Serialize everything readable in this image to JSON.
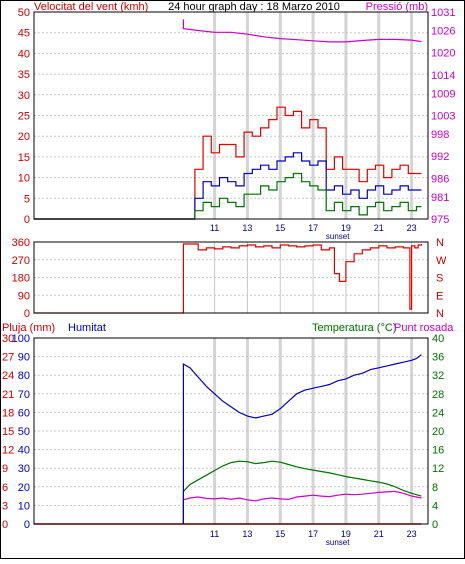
{
  "colors": {
    "wind_speed": "#e00000",
    "wind_gust": "#e00000",
    "wind_avg": "#0000c0",
    "wind_min": "#007000",
    "pressure": "#cc00cc",
    "direction": "#e00000",
    "rain": "#e00000",
    "humidity": "#0000c0",
    "temperature": "#007000",
    "dewpoint": "#cc00cc",
    "grid": "#c8c8c8",
    "sunset_band": "#d4d4d4",
    "axis_text_left": "#cc0000",
    "axis_text_right_pressure": "#cc00cc",
    "axis_text_humidity": "#0000c0",
    "axis_text_temp": "#007000"
  },
  "chart_data": [
    {
      "type": "line",
      "title": "24 hour graph day : 18 Marzo 2010",
      "left_label": "Velocitat del vent (kmh)",
      "right_label": "Pressió (mb)",
      "x_ticks": [
        "11",
        "13",
        "15",
        "17",
        "19",
        "21",
        "23"
      ],
      "x_tick_values": [
        11,
        13,
        15,
        17,
        19,
        21,
        23
      ],
      "xlim": [
        0,
        24
      ],
      "sunset_label": "sunset",
      "sunset_hour": 18.5,
      "left_ticks": [
        "0",
        "5",
        "10",
        "15",
        "20",
        "25",
        "30",
        "35",
        "40",
        "45",
        "50"
      ],
      "ylim": [
        0,
        50
      ],
      "right_ticks": [
        "975",
        "981",
        "986",
        "992",
        "998",
        "1003",
        "1009",
        "1014",
        "1020",
        "1026",
        "1031"
      ],
      "y2lim": [
        975,
        1031
      ],
      "series": [
        {
          "key": "gust",
          "x": [
            0,
            9.5,
            9.8,
            10.3,
            10.8,
            11.3,
            11.8,
            12.3,
            12.8,
            13.3,
            13.8,
            14.3,
            14.8,
            15.3,
            15.8,
            16.3,
            16.8,
            17.3,
            17.8,
            18.3,
            18.8,
            19.3,
            19.8,
            20.3,
            20.8,
            21.3,
            21.8,
            22.3,
            22.8,
            23.3,
            23.6
          ],
          "values": [
            0,
            0,
            12,
            20,
            16,
            18,
            18,
            15,
            21,
            20,
            22,
            24,
            27,
            25,
            26,
            22,
            24,
            22,
            12,
            15,
            12,
            12,
            9,
            12,
            13,
            10,
            12,
            13,
            11,
            11,
            11
          ]
        },
        {
          "key": "average",
          "x": [
            0,
            9.5,
            9.8,
            10.3,
            10.8,
            11.3,
            11.8,
            12.3,
            12.8,
            13.3,
            13.8,
            14.3,
            14.8,
            15.3,
            15.8,
            16.3,
            16.8,
            17.3,
            17.8,
            18.3,
            18.8,
            19.3,
            19.8,
            20.3,
            20.8,
            21.3,
            21.8,
            22.3,
            22.8,
            23.3,
            23.6
          ],
          "values": [
            0,
            0,
            5,
            9,
            8,
            10,
            9,
            8,
            11,
            12,
            13,
            12,
            14,
            15,
            16,
            14,
            13,
            14,
            7,
            8,
            6,
            7,
            5,
            7,
            8,
            6,
            7,
            8,
            7,
            7,
            7
          ]
        },
        {
          "key": "minimum",
          "x": [
            0,
            9.5,
            9.8,
            10.3,
            10.8,
            11.3,
            11.8,
            12.3,
            12.8,
            13.3,
            13.8,
            14.3,
            14.8,
            15.3,
            15.8,
            16.3,
            16.8,
            17.3,
            17.8,
            18.3,
            18.8,
            19.3,
            19.8,
            20.3,
            20.8,
            21.3,
            21.8,
            22.3,
            22.8,
            23.3,
            23.6
          ],
          "values": [
            0,
            0,
            2,
            4,
            3,
            5,
            4,
            3,
            6,
            6,
            8,
            7,
            9,
            10,
            11,
            9,
            8,
            7,
            2,
            4,
            2,
            3,
            1,
            3,
            4,
            2,
            3,
            4,
            2,
            3,
            3
          ]
        },
        {
          "key": "pressure",
          "axis": "right",
          "x": [
            9.1,
            9.1,
            10,
            11,
            12,
            13,
            14,
            15,
            16,
            17,
            18,
            19,
            20,
            21,
            22,
            23,
            23.6
          ],
          "values": [
            1029,
            1026.5,
            1026,
            1025.5,
            1025.5,
            1025,
            1024.3,
            1023.8,
            1023.5,
            1023.2,
            1022.9,
            1022.9,
            1023.3,
            1023.6,
            1023.6,
            1023.4,
            1023
          ]
        }
      ]
    },
    {
      "type": "line",
      "left_ticks": [
        "0",
        "90",
        "180",
        "270",
        "360"
      ],
      "ylim": [
        0,
        360
      ],
      "right_ticks": [
        "N",
        "E",
        "S",
        "W",
        "N"
      ],
      "series": [
        {
          "key": "direction",
          "x": [
            0,
            9.1,
            9.1,
            10,
            10.5,
            11,
            11.5,
            12,
            12.5,
            13,
            13.5,
            14,
            14.5,
            15,
            15.5,
            16,
            16.5,
            17,
            17.5,
            18,
            18.3,
            18.6,
            19,
            19.5,
            20,
            20.5,
            21,
            21.5,
            22,
            22.5,
            22.9,
            23,
            23.2,
            23.4,
            23.6
          ],
          "values": [
            0,
            0,
            350,
            320,
            330,
            325,
            335,
            330,
            340,
            345,
            335,
            340,
            330,
            345,
            340,
            335,
            340,
            345,
            320,
            330,
            200,
            160,
            260,
            300,
            320,
            330,
            340,
            330,
            335,
            330,
            20,
            340,
            330,
            345,
            350
          ]
        }
      ]
    },
    {
      "type": "line",
      "left_label": "Pluja (mm)",
      "left2_label": "Humitat",
      "right_label": "Temperatura (°C)",
      "right2_label": "Punt rosada",
      "x_ticks": [
        "11",
        "13",
        "15",
        "17",
        "19",
        "21",
        "23"
      ],
      "sunset_label": "sunset",
      "left_ticks": [
        "0",
        "3",
        "6",
        "9",
        "12",
        "15",
        "18",
        "21",
        "24",
        "27",
        "30"
      ],
      "ylim": [
        0,
        30
      ],
      "humidity_ticks": [
        "0",
        "10",
        "20",
        "30",
        "40",
        "50",
        "60",
        "70",
        "80",
        "90",
        "100"
      ],
      "humidity_lim": [
        0,
        100
      ],
      "right_ticks": [
        "0",
        "4",
        "8",
        "12",
        "16",
        "20",
        "24",
        "28",
        "32",
        "36",
        "40"
      ],
      "y2lim": [
        0,
        40
      ],
      "series": [
        {
          "key": "rain",
          "x": [
            0,
            23.6
          ],
          "values": [
            0,
            0
          ]
        },
        {
          "key": "humidity",
          "axis": "humidity",
          "x": [
            9.1,
            9.1,
            9.5,
            10,
            10.5,
            11,
            11.5,
            12,
            12.5,
            13,
            13.5,
            14,
            14.5,
            15,
            15.5,
            16,
            16.5,
            17,
            17.5,
            18,
            18.5,
            19,
            19.5,
            20,
            20.5,
            21,
            21.5,
            22,
            22.5,
            23,
            23.3,
            23.6
          ],
          "values": [
            0,
            86,
            84,
            79,
            74,
            70,
            66,
            63,
            60,
            58,
            57,
            58,
            59,
            62,
            66,
            70,
            72,
            73,
            74,
            75,
            77,
            78,
            80,
            81,
            83,
            84,
            85,
            86,
            87,
            88,
            89,
            91
          ]
        },
        {
          "key": "temperature",
          "axis": "right",
          "x": [
            9.1,
            9.1,
            9.5,
            10,
            10.5,
            11,
            11.5,
            12,
            12.5,
            13,
            13.5,
            14,
            14.5,
            15,
            15.5,
            16,
            16.5,
            17,
            17.5,
            18,
            18.5,
            19,
            19.5,
            20,
            20.5,
            21,
            21.5,
            22,
            22.5,
            23,
            23.3,
            23.6
          ],
          "values": [
            0,
            7,
            8.5,
            9.5,
            10.5,
            11.5,
            12.5,
            13.2,
            13.5,
            13.4,
            13.0,
            13.2,
            13.5,
            13.3,
            12.8,
            12.3,
            11.9,
            11.6,
            11.3,
            11.0,
            10.6,
            10.2,
            9.9,
            9.6,
            9.3,
            9.0,
            8.6,
            8.0,
            7.2,
            6.6,
            6.3,
            6.0
          ]
        },
        {
          "key": "dewpoint",
          "axis": "right",
          "x": [
            9.1,
            9.1,
            9.5,
            10,
            10.5,
            11,
            11.5,
            12,
            12.5,
            13,
            13.5,
            14,
            14.5,
            15,
            15.5,
            16,
            16.5,
            17,
            17.5,
            18,
            18.5,
            19,
            19.5,
            20,
            20.5,
            21,
            21.5,
            22,
            22.5,
            23,
            23.3,
            23.6
          ],
          "values": [
            0,
            5.2,
            5.6,
            5.8,
            5.5,
            5.4,
            5.6,
            5.3,
            5.6,
            5.2,
            5.0,
            5.4,
            5.6,
            5.4,
            5.3,
            5.8,
            6.0,
            6.2,
            6.0,
            5.9,
            6.2,
            6.4,
            6.3,
            6.4,
            6.6,
            6.8,
            6.9,
            7.0,
            6.6,
            6.0,
            5.8,
            5.6
          ]
        }
      ]
    }
  ]
}
